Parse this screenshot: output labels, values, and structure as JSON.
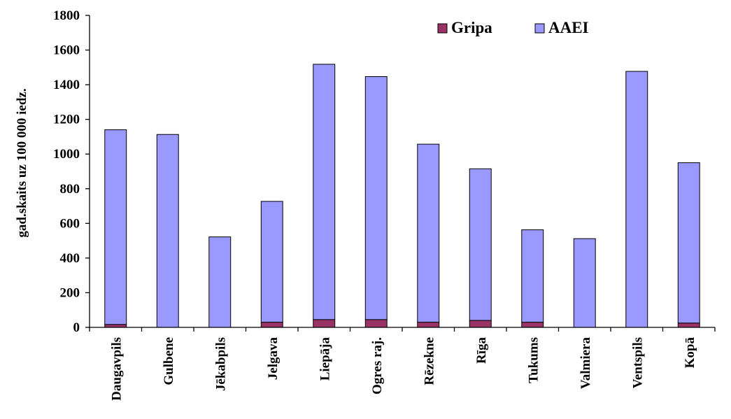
{
  "chart_data": {
    "type": "bar",
    "stacked": true,
    "title": "",
    "xlabel": "",
    "ylabel": "gad.skaits uz 100 000 iedz.",
    "ylim": [
      0,
      1800
    ],
    "yticks": [
      0,
      200,
      400,
      600,
      800,
      1000,
      1200,
      1400,
      1600,
      1800
    ],
    "grid": false,
    "legend_position": "top-right",
    "categories": [
      "Daugavpils",
      "Gulbene",
      "Jēkabpils",
      "Jelgava",
      "Liepāja",
      "Ogres raj.",
      "Rēzekne",
      "Rīga",
      "Tukums",
      "Valmiera",
      "Ventspils",
      "Kopā"
    ],
    "series": [
      {
        "name": "Gripa",
        "color": "#993366",
        "values": [
          17,
          0,
          0,
          30,
          45,
          45,
          30,
          40,
          30,
          0,
          0,
          25
        ]
      },
      {
        "name": "AAEI",
        "color": "#9999ff",
        "values": [
          1123,
          1113,
          522,
          697,
          1473,
          1402,
          1027,
          875,
          533,
          512,
          1477,
          925
        ]
      }
    ]
  }
}
